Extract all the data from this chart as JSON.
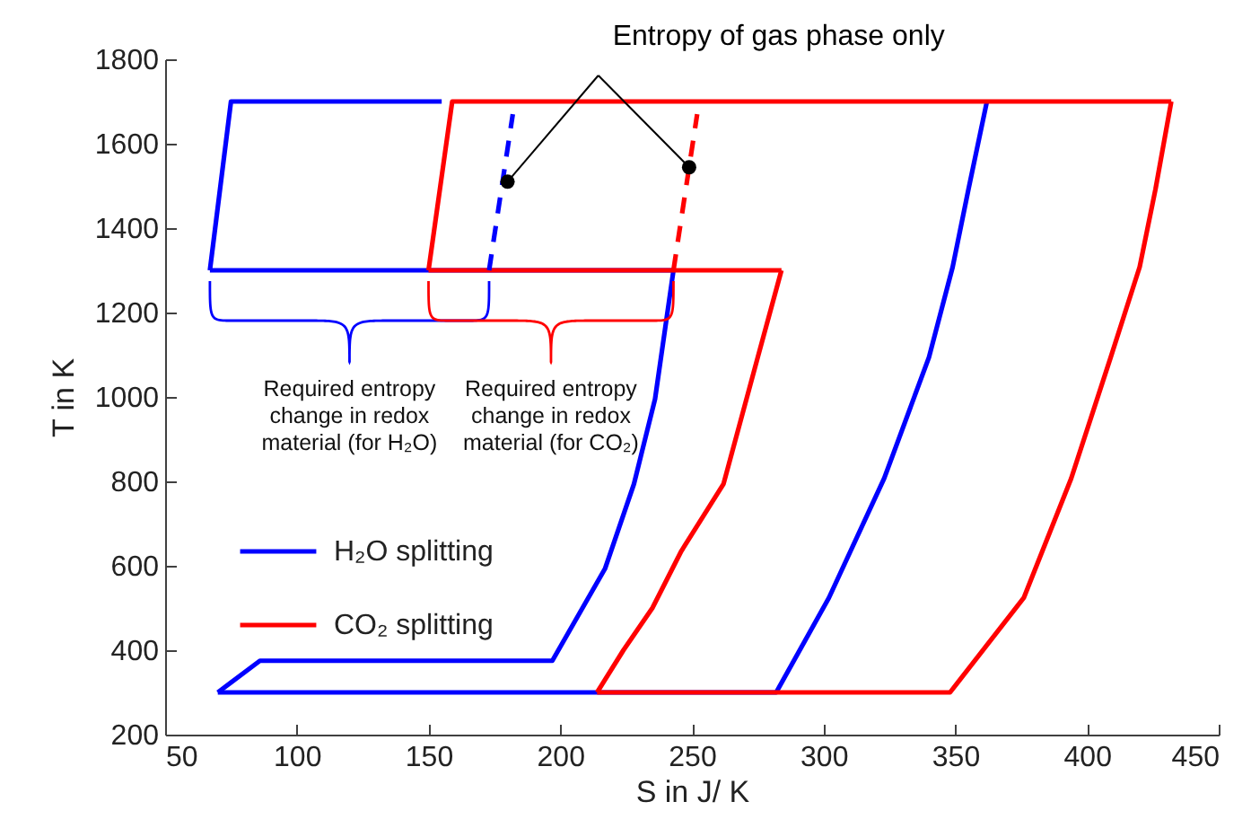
{
  "chart_data": {
    "type": "line",
    "xlabel": "S in J/ K",
    "ylabel": "T in K",
    "xlim": [
      50,
      450
    ],
    "xticks": [
      50,
      100,
      150,
      200,
      250,
      300,
      350,
      400,
      450
    ],
    "ylim": [
      200,
      1800
    ],
    "yticks": [
      200,
      400,
      600,
      800,
      1000,
      1200,
      1400,
      1600,
      1800
    ],
    "grid": false,
    "legend": "bottom left",
    "marker": "none",
    "annotations": [
      {
        "text": "Entropy of gas phase only",
        "x": 180,
        "y": 1510
      },
      "Required entropy change in redox material (for H₂O)",
      "Required entropy change in redox material (for CO₂)"
    ],
    "series": [
      {
        "name": "H₂O splitting",
        "color": "#0000ff",
        "line_style": "solid",
        "x": [
          70,
          86,
          197,
          217,
          228,
          236,
          243
        ],
        "values": [
          300,
          375,
          375,
          593,
          794,
          995,
          1300
        ]
      },
      {
        "color": "#0000ff",
        "line_style": "solid",
        "x": [
          67,
          243
        ],
        "values": [
          1300,
          1300
        ]
      },
      {
        "color": "#0000ff",
        "line_style": "solid",
        "x": [
          67,
          75,
          155
        ],
        "values": [
          1300,
          1700,
          1700
        ]
      },
      {
        "color": "#0000ff",
        "line_style": "solid",
        "x": [
          70,
          282,
          302,
          323,
          340,
          349,
          355,
          362
        ],
        "values": [
          300,
          300,
          524,
          807,
          1094,
          1308,
          1492,
          1700
        ]
      },
      {
        "name": "CO₂ splitting",
        "color": "#ff0000",
        "line_style": "solid",
        "x": [
          214,
          224,
          235,
          246,
          262,
          275,
          284
        ],
        "values": [
          300,
          400,
          500,
          635,
          794,
          1094,
          1300
        ]
      },
      {
        "color": "#ff0000",
        "line_style": "solid",
        "x": [
          150,
          284
        ],
        "values": [
          1300,
          1300
        ]
      },
      {
        "color": "#ff0000",
        "line_style": "solid",
        "x": [
          150,
          159,
          432
        ],
        "values": [
          1300,
          1700,
          1700
        ]
      },
      {
        "color": "#ff0000",
        "line_style": "solid",
        "x": [
          214,
          348,
          376,
          394,
          409,
          420,
          426,
          432
        ],
        "values": [
          300,
          300,
          524,
          807,
          1094,
          1308,
          1492,
          1700
        ]
      },
      {
        "color": "#0000ff",
        "line_style": "dashed",
        "x": [
          173,
          182
        ],
        "values": [
          1300,
          1670
        ]
      },
      {
        "color": "#ff0000",
        "line_style": "dashed",
        "x": [
          243,
          252
        ],
        "values": [
          1300,
          1670
        ]
      }
    ]
  }
}
